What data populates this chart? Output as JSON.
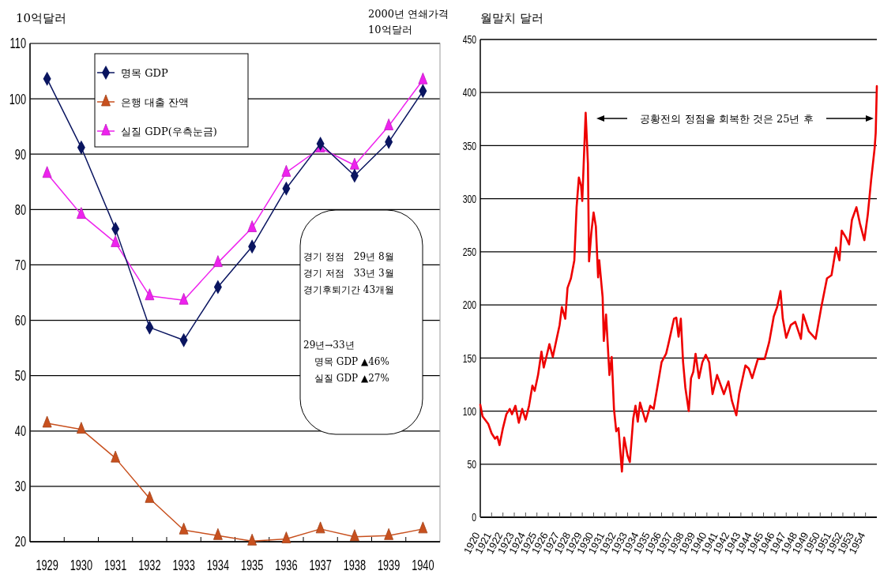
{
  "chart_data": [
    {
      "type": "line",
      "ylabel": "10억달러",
      "y2label": "2000년 연쇄가격\n10억달러",
      "categories": [
        "1929",
        "1930",
        "1931",
        "1932",
        "1933",
        "1934",
        "1935",
        "1936",
        "1937",
        "1938",
        "1939",
        "1940"
      ],
      "series": [
        {
          "name": "명목 GDP",
          "color": "#0a1560",
          "marker": "diamond",
          "values": [
            103.6,
            91.2,
            76.5,
            58.7,
            56.4,
            66.0,
            73.3,
            83.8,
            91.9,
            86.1,
            92.2,
            101.4
          ]
        },
        {
          "name": "은행 대출 잔액",
          "color": "#c8501e",
          "marker": "triangle",
          "values": [
            41.4,
            40.3,
            35.1,
            27.8,
            22.1,
            21.1,
            20.1,
            20.5,
            22.3,
            20.9,
            21.1,
            22.3
          ]
        },
        {
          "name": "실질 GDP(우측눈금)",
          "color": "#ee22ee",
          "marker": "triangle",
          "values": [
            86.5,
            79.1,
            74.0,
            64.4,
            63.6,
            70.4,
            76.7,
            86.7,
            91.1,
            88.0,
            95.1,
            103.4
          ]
        }
      ],
      "ylim": [
        20,
        110
      ],
      "yticks": [
        20,
        30,
        40,
        50,
        60,
        70,
        80,
        90,
        100,
        110
      ],
      "grid": "y",
      "legend": "top left",
      "annotations": [
        "경기 정점　29년 8월",
        "경기 저점　33년 3월",
        "경기후퇴기간 43개월",
        "29년→33년",
        "명목 GDP ▲46%",
        "실질 GDP ▲27%"
      ]
    },
    {
      "type": "line",
      "ylabel": "월말치 달러",
      "series": [
        {
          "color": "#ee0000",
          "x": [
            1920.0,
            1920.2,
            1920.7,
            1921.0,
            1921.3,
            1921.5,
            1921.7,
            1922.0,
            1922.3,
            1922.6,
            1922.8,
            1923.1,
            1923.4,
            1923.7,
            1924.0,
            1924.3,
            1924.6,
            1924.8,
            1925.1,
            1925.4,
            1925.6,
            1925.9,
            1926.1,
            1926.4,
            1926.7,
            1927.0,
            1927.2,
            1927.5,
            1927.7,
            1928.0,
            1928.3,
            1928.5,
            1928.7,
            1928.9,
            1929.0,
            1929.3,
            1929.5,
            1929.6,
            1929.8,
            1930.0,
            1930.2,
            1930.4,
            1930.5,
            1930.8,
            1930.9,
            1931.1,
            1931.4,
            1931.6,
            1931.8,
            1932.0,
            1932.2,
            1932.5,
            1932.7,
            1933.0,
            1933.2,
            1933.5,
            1933.7,
            1933.9,
            1934.1,
            1934.6,
            1935.0,
            1935.3,
            1935.7,
            1936.0,
            1936.4,
            1936.6,
            1937.1,
            1937.3,
            1937.5,
            1937.7,
            1937.9,
            1938.1,
            1938.4,
            1938.6,
            1938.8,
            1939.0,
            1939.3,
            1939.6,
            1939.9,
            1940.2,
            1940.5,
            1940.9,
            1941.5,
            1941.9,
            1942.2,
            1942.6,
            1942.85,
            1943.4,
            1943.7,
            1944.0,
            1944.5,
            1945.1,
            1945.5,
            1945.9,
            1946.2,
            1946.5,
            1946.7,
            1947.0,
            1947.4,
            1947.8,
            1948.3,
            1948.5,
            1949.0,
            1949.6,
            1950.1,
            1950.6,
            1951.0,
            1951.4,
            1951.7,
            1951.9,
            1952.3,
            1952.55,
            1952.8,
            1953.2,
            1953.5,
            1953.9,
            1954.2,
            1954.5,
            1954.8,
            1954.9,
            1955.0
          ],
          "values": [
            106,
            95,
            88,
            79,
            74,
            76,
            68,
            84,
            97,
            102,
            97,
            105,
            89,
            102,
            92,
            105,
            124,
            119,
            134,
            156,
            141,
            154,
            163,
            151,
            166,
            181,
            198,
            187,
            216,
            225,
            242,
            292,
            320,
            312,
            298,
            381,
            333,
            241,
            268,
            287,
            274,
            226,
            242,
            207,
            166,
            191,
            134,
            151,
            102,
            81,
            84,
            43,
            75,
            58,
            52,
            93,
            105,
            90,
            108,
            90,
            105,
            102,
            127,
            146,
            154,
            163,
            187,
            188,
            170,
            187,
            146,
            122,
            100,
            131,
            137,
            154,
            131,
            146,
            153,
            146,
            116,
            134,
            116,
            128,
            110,
            96,
            116,
            143,
            140,
            131,
            149,
            149,
            165,
            189,
            198,
            213,
            187,
            169,
            181,
            184,
            168,
            191,
            175,
            168,
            198,
            225,
            228,
            254,
            242,
            270,
            263,
            257,
            280,
            292,
            277,
            261,
            285,
            318,
            347,
            362,
            406
          ]
        }
      ],
      "xlim": [
        1920,
        1955
      ],
      "xticks": [
        1920,
        1921,
        1922,
        1923,
        1924,
        1925,
        1926,
        1927,
        1928,
        1929,
        1930,
        1931,
        1932,
        1933,
        1934,
        1935,
        1936,
        1937,
        1938,
        1939,
        1940,
        1941,
        1942,
        1943,
        1944,
        1945,
        1946,
        1947,
        1948,
        1949,
        1950,
        1951,
        1952,
        1953,
        1954
      ],
      "ylim": [
        0,
        450
      ],
      "yticks": [
        0,
        50,
        100,
        150,
        200,
        250,
        300,
        350,
        400,
        450
      ],
      "grid": "y",
      "annotations": [
        "공황전의 정점을 회복한 것은 25년 후"
      ]
    }
  ]
}
